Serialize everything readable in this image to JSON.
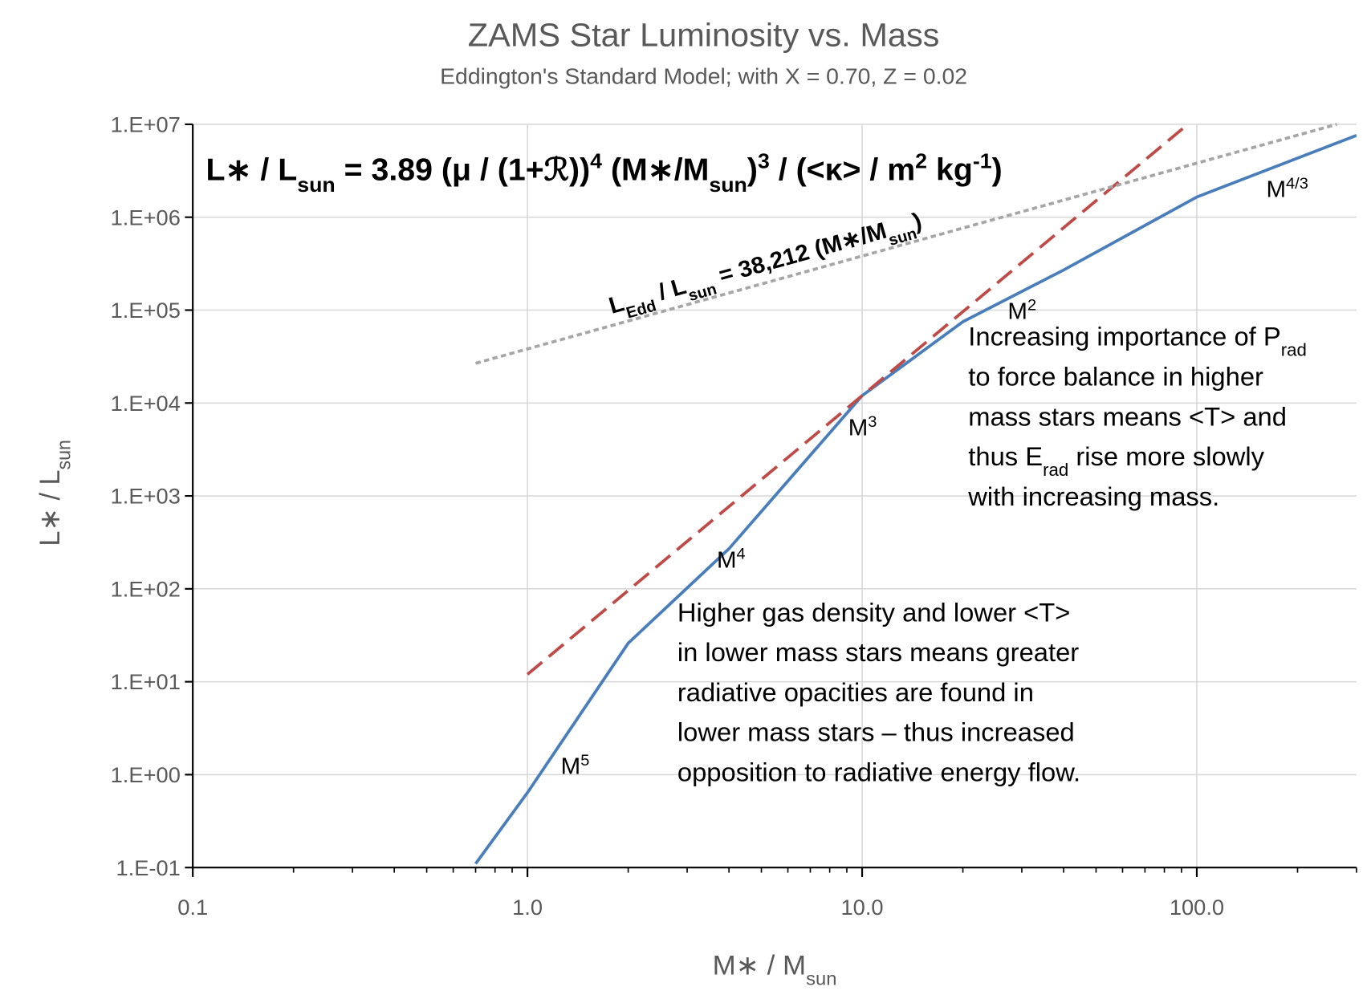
{
  "chart_data": {
    "type": "line",
    "title": "ZAMS Star Luminosity vs. Mass",
    "subtitle": "Eddington's Standard Model; with X = 0.70, Z = 0.02",
    "x_label": [
      [
        {
          "t": "M∗ / M"
        },
        {
          "t": "sun",
          "s": "sub"
        }
      ]
    ],
    "y_label": [
      [
        {
          "t": "L∗ / L"
        },
        {
          "t": "sun",
          "s": "sub"
        }
      ]
    ],
    "x_log": true,
    "y_log": true,
    "grid": true,
    "xlim": [
      0.1,
      300
    ],
    "ylim": [
      0.1,
      10000000
    ],
    "xticks": [
      0.1,
      {
        "value": 1,
        "label": "1.0"
      },
      {
        "value": 10,
        "label": "10.0"
      },
      {
        "value": 100,
        "label": "100.0"
      }
    ],
    "x_minor_ticks": [
      0.2,
      0.3,
      0.4,
      0.5,
      0.6,
      0.7,
      0.8,
      0.9,
      2,
      3,
      4,
      5,
      6,
      7,
      8,
      9,
      20,
      30,
      40,
      50,
      60,
      70,
      80,
      90,
      200,
      300
    ],
    "yticks": [
      {
        "value": 0.1,
        "label": "1.E-01"
      },
      {
        "value": 1,
        "label": "1.E+00"
      },
      {
        "value": 10,
        "label": "1.E+01"
      },
      {
        "value": 100,
        "label": "1.E+02"
      },
      {
        "value": 1000,
        "label": "1.E+03"
      },
      {
        "value": 10000,
        "label": "1.E+04"
      },
      {
        "value": 100000,
        "label": "1.E+05"
      },
      {
        "value": 1000000,
        "label": "1.E+06"
      },
      {
        "value": 10000000,
        "label": "1.E+07"
      }
    ],
    "series": [
      {
        "color": "#4a7ebb",
        "dash": "solid",
        "x": [
          0.7,
          1,
          2,
          4,
          10,
          20,
          40,
          100,
          300
        ],
        "values": [
          0.11,
          0.64,
          26,
          270,
          12000,
          75000,
          270000,
          1650000,
          7600000
        ]
      },
      {
        "color": "#be4b48",
        "dash": "dashed",
        "x": [
          1,
          94
        ],
        "values": [
          12,
          10000000
        ]
      },
      {
        "color": "#a6a6a6",
        "dash": "dotted",
        "x": [
          0.7,
          262
        ],
        "values": [
          26748,
          10000000
        ]
      }
    ],
    "annotations": [
      {
        "lines": [
          [
            {
              "t": "L∗ / L"
            },
            {
              "t": "sun",
              "s": "sub"
            },
            {
              "t": " = 3.89 (μ / (1+ℛ))"
            },
            {
              "t": "4",
              "s": "sup"
            },
            {
              "t": " (M∗/M"
            },
            {
              "t": "sun",
              "s": "sub"
            },
            {
              "t": ")"
            },
            {
              "t": "3",
              "s": "sup"
            },
            {
              "t": " / (<κ> / m"
            },
            {
              "t": "2",
              "s": "sup"
            },
            {
              "t": " kg"
            },
            {
              "t": "-1",
              "s": "sup"
            },
            {
              "t": ")"
            }
          ]
        ]
      },
      {
        "lines": [
          [
            {
              "t": "L"
            },
            {
              "t": "Edd",
              "s": "sub"
            },
            {
              "t": " / L"
            },
            {
              "t": "sun",
              "s": "sub"
            },
            {
              "t": " = 38,212 (M∗/M"
            },
            {
              "t": "sun",
              "s": "sub"
            },
            {
              "t": ")"
            }
          ]
        ]
      },
      {
        "lines": [
          [
            {
              "t": "M"
            },
            {
              "t": "5",
              "s": "sup"
            }
          ]
        ]
      },
      {
        "lines": [
          [
            {
              "t": "M"
            },
            {
              "t": "4",
              "s": "sup"
            }
          ]
        ]
      },
      {
        "lines": [
          [
            {
              "t": "M"
            },
            {
              "t": "3",
              "s": "sup"
            }
          ]
        ]
      },
      {
        "lines": [
          [
            {
              "t": "M"
            },
            {
              "t": "2",
              "s": "sup"
            }
          ]
        ]
      },
      {
        "lines": [
          [
            {
              "t": "M"
            },
            {
              "t": "4/3",
              "s": "sup"
            }
          ]
        ]
      },
      {
        "lines": [
          [
            {
              "t": "Increasing importance of P"
            },
            {
              "t": "rad",
              "s": "sub"
            }
          ],
          [
            {
              "t": "to force balance in higher"
            }
          ],
          [
            {
              "t": "mass stars means <T> and"
            }
          ],
          [
            {
              "t": "thus E"
            },
            {
              "t": "rad",
              "s": "sub"
            },
            {
              "t": " rise more slowly"
            }
          ],
          [
            {
              "t": "with increasing mass."
            }
          ]
        ]
      },
      {
        "lines": [
          [
            {
              "t": "Higher gas density and lower <T>"
            }
          ],
          [
            {
              "t": "in lower mass stars means greater"
            }
          ],
          [
            {
              "t": "radiative opacities are found in"
            }
          ],
          [
            {
              "t": "lower mass stars –  thus increased"
            }
          ],
          [
            {
              "t": "opposition to radiative energy flow."
            }
          ]
        ]
      }
    ]
  }
}
